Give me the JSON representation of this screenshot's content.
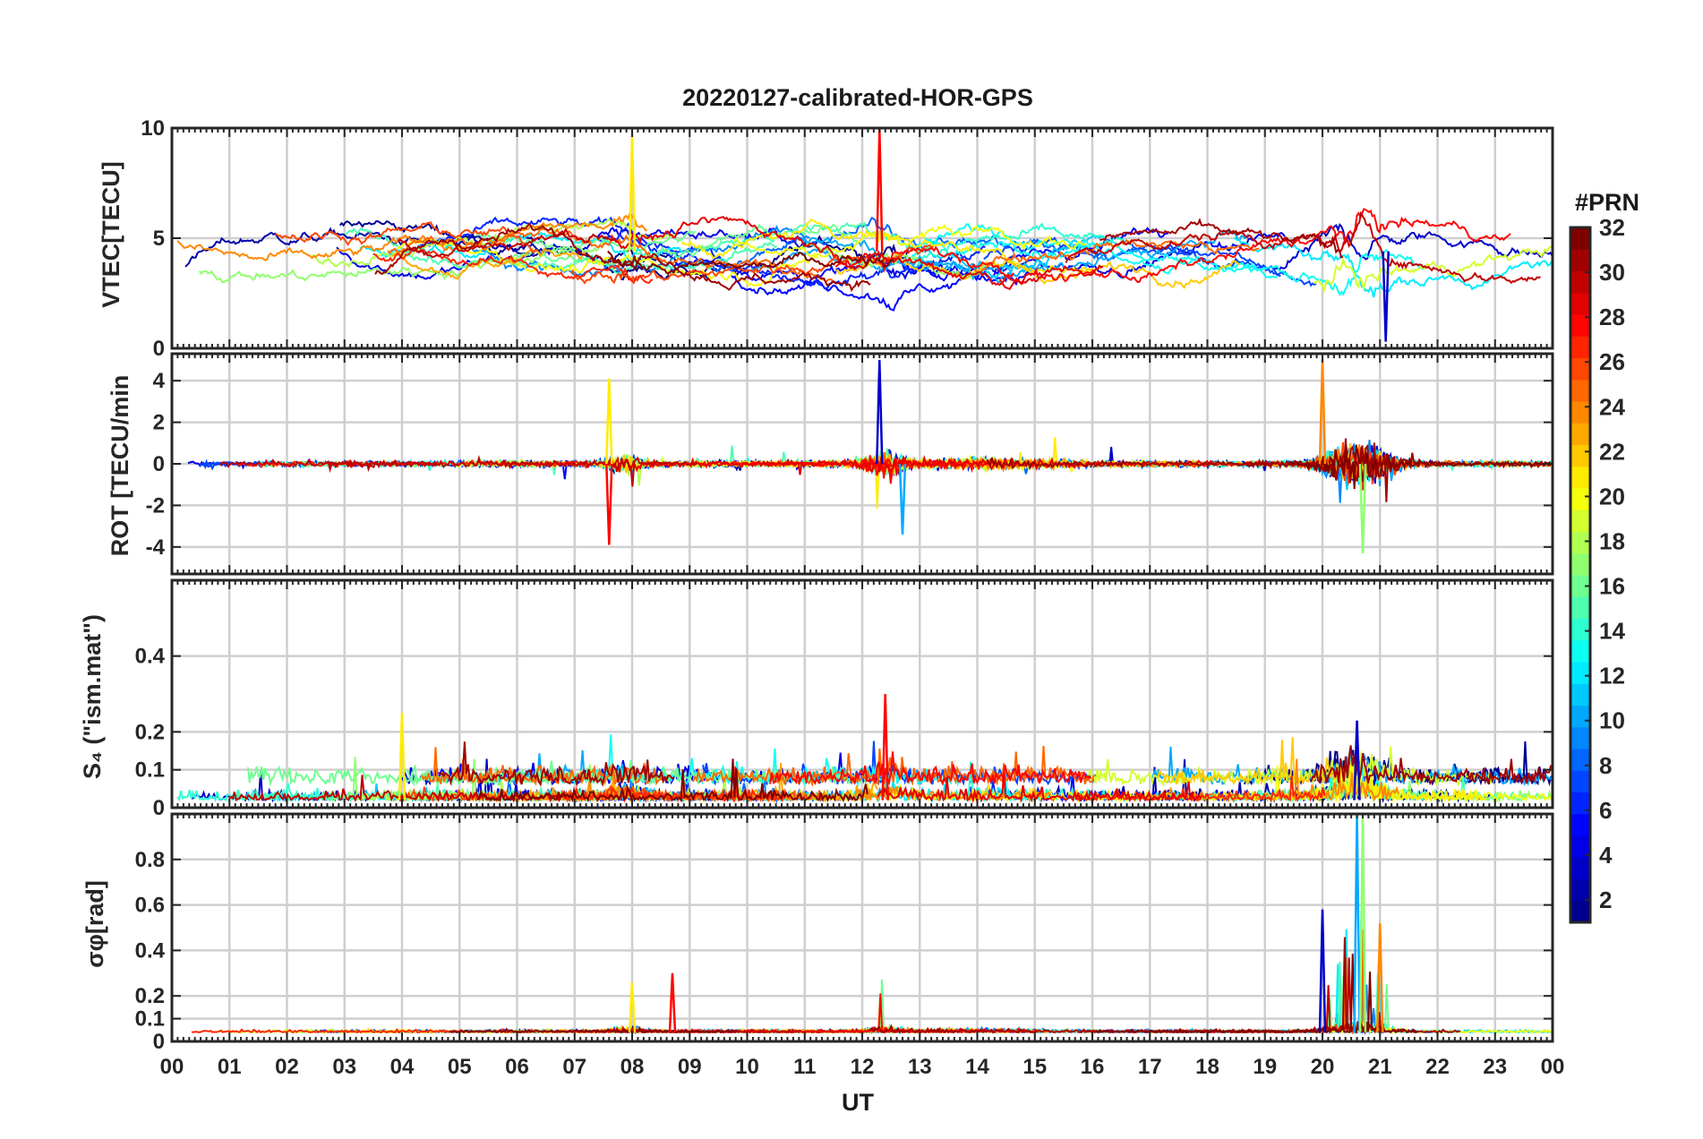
{
  "chart_data": {
    "type": "line",
    "title": "20220127-calibrated-HOR-GPS",
    "xlabel": "UT",
    "x_tick_labels": [
      "00",
      "01",
      "02",
      "03",
      "04",
      "05",
      "06",
      "07",
      "08",
      "09",
      "10",
      "11",
      "12",
      "13",
      "14",
      "15",
      "16",
      "17",
      "18",
      "19",
      "20",
      "21",
      "22",
      "23",
      "00"
    ],
    "xlim_hours": [
      0,
      24
    ],
    "colormap": "jet",
    "colorbar": {
      "label": "#PRN",
      "range": [
        1,
        32
      ],
      "ticks": [
        2,
        4,
        6,
        8,
        10,
        12,
        14,
        16,
        18,
        20,
        22,
        24,
        26,
        28,
        30,
        32
      ],
      "colors": [
        "#00008f",
        "#0000ff",
        "#0080ff",
        "#00ffff",
        "#80ff80",
        "#ffff00",
        "#ff8000",
        "#ff0000",
        "#800000"
      ]
    },
    "series_prn": [
      1,
      2,
      3,
      4,
      5,
      6,
      7,
      8,
      9,
      10,
      11,
      12,
      13,
      14,
      15,
      16,
      17,
      18,
      19,
      20,
      21,
      22,
      23,
      24,
      25,
      26,
      27,
      28,
      29,
      30,
      31,
      32
    ],
    "panels": [
      {
        "name": "vtec",
        "ylabel": "VTEC[TECU]",
        "ylim": [
          0,
          10
        ],
        "yticks": [
          0,
          5,
          10
        ],
        "ytick_labels": [
          "0",
          "5",
          "10"
        ],
        "baseline": 4.4,
        "typical_range": [
          1.0,
          9.8
        ],
        "notable": [
          {
            "ut": 8.0,
            "value": 9.6,
            "note": "peak"
          },
          {
            "ut": 12.3,
            "value": 10.0,
            "note": "peak"
          },
          {
            "ut": 21.1,
            "value": 0.3,
            "note": "dip"
          }
        ]
      },
      {
        "name": "rot",
        "ylabel": "ROT [TECU/min",
        "ylim": [
          -5.3,
          5.3
        ],
        "yticks": [
          -4,
          -2,
          0,
          2,
          4
        ],
        "ytick_labels": [
          "-4",
          "-2",
          "0",
          "2",
          "4"
        ],
        "baseline": 0,
        "notable": [
          {
            "ut": 7.6,
            "value": 4.1
          },
          {
            "ut": 7.6,
            "value": -3.9
          },
          {
            "ut": 12.3,
            "value": 5.0
          },
          {
            "ut": 12.7,
            "value": -3.4
          },
          {
            "ut": 20.7,
            "value": -4.3
          },
          {
            "ut": 20.0,
            "value": 5.0
          }
        ]
      },
      {
        "name": "s4",
        "ylabel": "S₄ (\"ism.mat\")",
        "ylim": [
          0,
          0.6
        ],
        "yticks": [
          0,
          0.1,
          0.2,
          0.4
        ],
        "ytick_labels": [
          "0",
          "0.1",
          "0.2",
          "0.4"
        ],
        "baseline": 0.02,
        "typical_range": [
          0,
          0.25
        ],
        "notable": [
          {
            "ut": 4.0,
            "value": 0.25
          },
          {
            "ut": 12.4,
            "value": 0.3
          },
          {
            "ut": 20.6,
            "value": 0.23
          }
        ]
      },
      {
        "name": "sigma_phi",
        "ylabel": "σφ[rad]",
        "ylim": [
          0,
          1
        ],
        "yticks": [
          0,
          0.1,
          0.2,
          0.4,
          0.6,
          0.8
        ],
        "ytick_labels": [
          "0",
          "0.1",
          "0.2",
          "0.4",
          "0.6",
          "0.8"
        ],
        "baseline": 0.04,
        "notable": [
          {
            "ut": 8.0,
            "value": 0.26
          },
          {
            "ut": 8.7,
            "value": 0.3
          },
          {
            "ut": 20.0,
            "value": 0.58
          },
          {
            "ut": 20.6,
            "value": 1.0
          },
          {
            "ut": 20.7,
            "value": 1.0
          },
          {
            "ut": 21.0,
            "value": 0.52
          }
        ]
      }
    ]
  }
}
